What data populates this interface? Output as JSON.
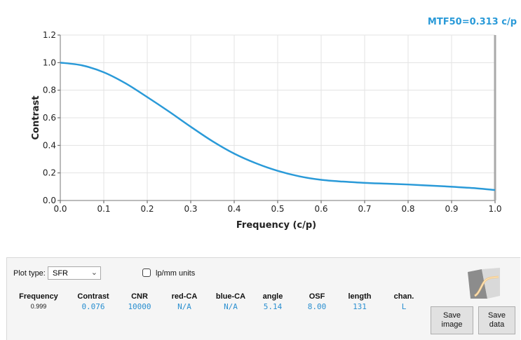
{
  "mtf50_label": "MTF50=0.313 c/p",
  "chart_data": {
    "type": "line",
    "xlabel": "Frequency (c/p)",
    "ylabel": "Contrast",
    "xlim": [
      0,
      1
    ],
    "ylim": [
      0,
      1.2
    ],
    "xticks": [
      "0.0",
      "0.1",
      "0.2",
      "0.3",
      "0.4",
      "0.5",
      "0.6",
      "0.7",
      "0.8",
      "0.9",
      "1.0"
    ],
    "yticks": [
      "0.0",
      "0.2",
      "0.4",
      "0.6",
      "0.8",
      "1.0",
      "1.2"
    ],
    "grid": true,
    "series": [
      {
        "color": "#2a9ad8",
        "x": [
          0.0,
          0.05,
          0.1,
          0.15,
          0.2,
          0.25,
          0.3,
          0.35,
          0.4,
          0.45,
          0.5,
          0.55,
          0.6,
          0.65,
          0.7,
          0.75,
          0.8,
          0.85,
          0.9,
          0.95,
          1.0
        ],
        "y": [
          1.0,
          0.98,
          0.93,
          0.85,
          0.75,
          0.645,
          0.535,
          0.43,
          0.34,
          0.27,
          0.215,
          0.175,
          0.15,
          0.137,
          0.128,
          0.122,
          0.116,
          0.108,
          0.1,
          0.09,
          0.076
        ]
      }
    ]
  },
  "controls": {
    "plot_type_label": "Plot type:",
    "plot_type_value": "SFR",
    "lpmm_label": "lp/mm units"
  },
  "readouts": [
    {
      "key": "frequency",
      "header": "Frequency",
      "value": "0.999"
    },
    {
      "key": "contrast",
      "header": "Contrast",
      "value": "0.076"
    },
    {
      "key": "cnr",
      "header": "CNR",
      "value": "10000"
    },
    {
      "key": "red-ca",
      "header": "red-CA",
      "value": "N/A"
    },
    {
      "key": "blue-ca",
      "header": "blue-CA",
      "value": "N/A"
    },
    {
      "key": "angle",
      "header": "angle",
      "value": "5.14"
    },
    {
      "key": "osf",
      "header": "OSF",
      "value": "8.00"
    },
    {
      "key": "length",
      "header": "length",
      "value": "131"
    },
    {
      "key": "chan",
      "header": "chan.",
      "value": "L"
    }
  ],
  "buttons": {
    "save_image": "Save\nimage",
    "save_data": "Save\ndata"
  }
}
